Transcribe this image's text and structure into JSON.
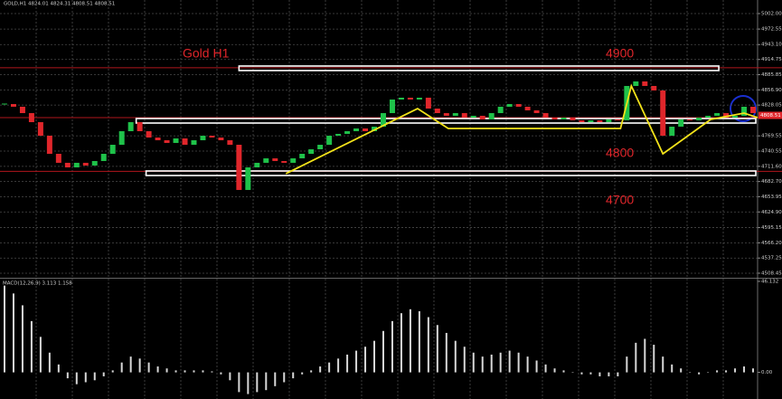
{
  "chart_data": [
    {
      "type": "candlestick",
      "title": "GOLD,H1 4824.01 4824.31 4808.51 4808.51",
      "close": [
        4830.0,
        4824.9,
        4812.8,
        4795.6,
        4769.8,
        4735.4,
        4718.3,
        4709.6,
        4718.3,
        4713.1,
        4721.7,
        4735.4,
        4752.6,
        4778.4,
        4795.6,
        4778.4,
        4766.4,
        4761.2,
        4756.1,
        4764.7,
        4752.6,
        4761.2,
        4769.8,
        4766.4,
        4761.2,
        4752.6,
        4666.7,
        4709.6,
        4718.3,
        4726.8,
        4721.7,
        4718.3,
        4726.8,
        4735.4,
        4744.0,
        4752.6,
        4769.8,
        4773.3,
        4778.4,
        4783.6,
        4778.4,
        4787.0,
        4812.8,
        4838.6,
        4842.1,
        4838.6,
        4842.1,
        4821.4,
        4812.8,
        4807.7,
        4812.8,
        4804.2,
        4807.7,
        4800.8,
        4812.8,
        4824.9,
        4830.0,
        4824.9,
        4818.0,
        4812.8,
        4804.2,
        4800.8,
        4804.2,
        4799.1,
        4795.6,
        4799.1,
        4795.6,
        4800.8,
        4799.1,
        4864.4,
        4873.0,
        4864.4,
        4855.8,
        4769.8,
        4787.0,
        4800.8,
        4799.1,
        4804.2,
        4807.7,
        4812.8,
        4804.2,
        4807.7,
        4824.9,
        4812.8
      ],
      "up_color": "#1fc24a",
      "down_color": "#e0262b",
      "ylim": [
        4499.8,
        5027.8
      ],
      "yticks": [
        {
          "value": 5002,
          "label": "5002.00"
        },
        4972.55,
        {
          "value": 4943.1,
          "label": "4943.10"
        },
        4914.75,
        4885.85,
        {
          "value": 4856.9,
          "label": "4856.90"
        },
        4828.05,
        4769.55,
        4740.55,
        {
          "value": 4711.6,
          "label": "4711.60"
        },
        {
          "value": 4682.7,
          "label": "4682.70"
        },
        4653.95,
        {
          "value": 4624.9,
          "label": "4624.90"
        },
        4595.15,
        {
          "value": 4566.2,
          "label": "4566.20"
        },
        4537.25,
        4508.45
      ],
      "grid": true,
      "current_price": 4808.51,
      "levels": {
        "color": "#b0161c",
        "values": [
          4899,
          4804.2,
          4702
        ]
      },
      "zones": [
        {
          "x": [
            26,
            79.2
          ],
          "values": [
            4902.3,
            4893.7
          ]
        },
        {
          "x": [
            14.6,
            83.3
          ],
          "values": [
            4802.5,
            4793.9
          ]
        },
        {
          "x": [
            15.7,
            83.3
          ],
          "values": [
            4702.8,
            4694.2
          ]
        }
      ],
      "trendline": {
        "color": "#f2e21a",
        "x": [
          31.2,
          45.8,
          49.2,
          68.3,
          69.5,
          73,
          78.3,
          82,
          83.5
        ],
        "values": [
          4697.6,
          4821.4,
          4783.6,
          4783.6,
          4864.4,
          4735.4,
          4800.8,
          4812.8,
          4804.2
        ]
      },
      "annotations": [
        "Gold H1",
        "4900",
        "4800",
        "4700"
      ]
    },
    {
      "type": "bar",
      "title": "MACD(12,26,9) 3.113 1.158",
      "values": [
        44,
        40,
        34,
        26,
        18,
        10,
        4,
        -3,
        -6,
        -5,
        -4,
        -2,
        1,
        5,
        8,
        7,
        5,
        3,
        2,
        1,
        1,
        1,
        1,
        0.5,
        -1,
        -4,
        -10,
        -11,
        -10,
        -9,
        -7,
        -5,
        -3,
        -1,
        1,
        3,
        5,
        7,
        9,
        11,
        13,
        16,
        21,
        26,
        30,
        32,
        31,
        28,
        24,
        20,
        16,
        13,
        10,
        8,
        9,
        10,
        11,
        10,
        8,
        6,
        4,
        2,
        1,
        0,
        -1,
        -1,
        -2,
        -2,
        -2,
        8,
        15,
        17,
        14,
        8,
        4,
        2,
        0,
        -1,
        0,
        1,
        1,
        2,
        3,
        2
      ],
      "color": "#d8d8d8",
      "ylim": [
        -13.5,
        47.5
      ],
      "yticks": [
        46.132,
        {
          "value": 0,
          "label": "0.00"
        }
      ]
    }
  ]
}
